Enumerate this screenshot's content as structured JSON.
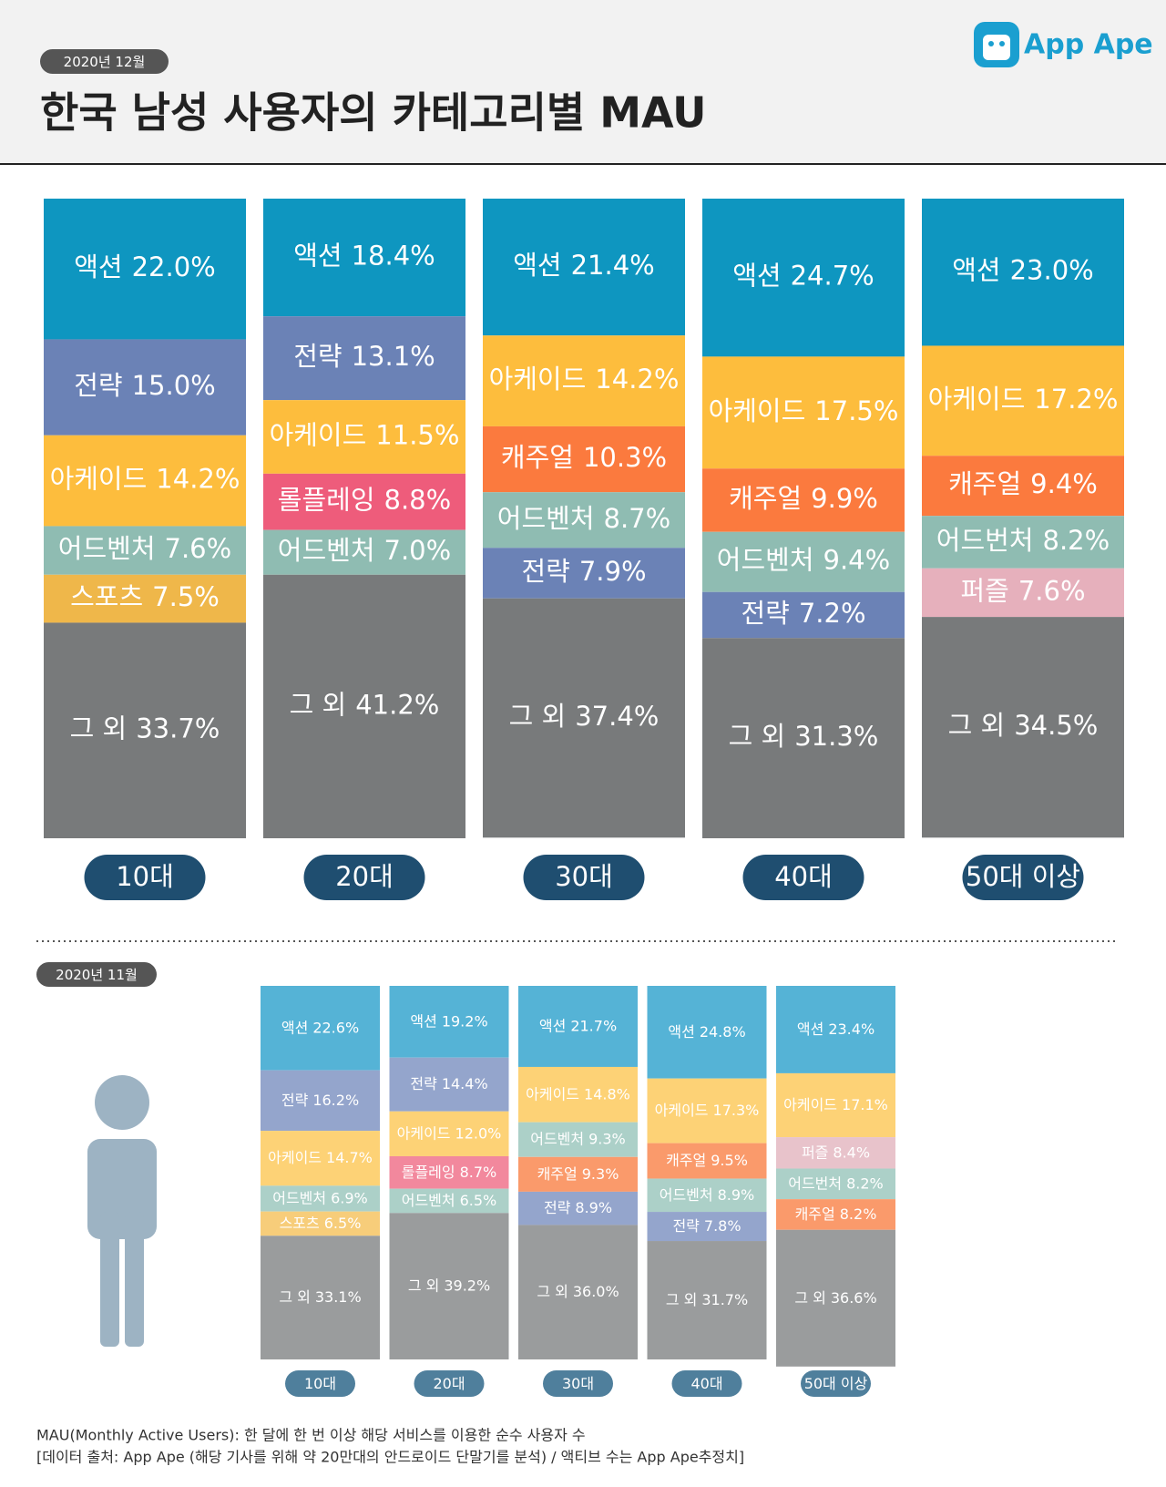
{
  "logo": "App Ape",
  "title": "한국 남성 사용자의 카테고리별 MAU",
  "notes": [
    "MAU(Monthly Active Users):  한 달에 한 번 이상 해당 서비스를 이용한 순수 사용자 수",
    "[데이터 출처: App Ape (해당 기사를 위해 약 20만대의 안드로이드 단말기를 분석) / 액티브 수는 App Ape추정치]"
  ],
  "chart_data": [
    {
      "type": "stacked_bar",
      "date": "2020년 12월",
      "ylim": [
        0,
        100
      ],
      "categories": [
        "10대",
        "20대",
        "30대",
        "40대",
        "50대 이상"
      ],
      "colors": {
        "액션": "#0e96c0",
        "전략": "#6b82b6",
        "아케이드": "#fdbd3d",
        "어드벤처": "#8fbcb2",
        "어드번처": "#8fbcb2",
        "스포츠": "#efb74a",
        "롤플레잉": "#ee5c7b",
        "캐주얼": "#fb7a3e",
        "퍼즐": "#e6b0bc",
        "그 외": "#787a7b"
      },
      "stacks": [
        {
          "names": [
            "액션",
            "전략",
            "아케이드",
            "어드벤처",
            "스포츠",
            "그 외"
          ],
          "values": [
            22.0,
            15.0,
            14.2,
            7.6,
            7.5,
            33.7
          ],
          "value_labels": [
            "22.0%",
            "15.0%",
            "14.2%",
            "7.6%",
            "7.5%",
            "33.7%"
          ]
        },
        {
          "names": [
            "액션",
            "전략",
            "아케이드",
            "롤플레잉",
            "어드벤처",
            "그 외"
          ],
          "values": [
            18.4,
            13.1,
            11.5,
            8.8,
            7.0,
            41.2
          ],
          "value_labels": [
            "18.4%",
            "13.1%",
            "11.5%",
            "8.8%",
            "7.0%",
            "41.2%"
          ]
        },
        {
          "names": [
            "액션",
            "아케이드",
            "캐주얼",
            "어드벤처",
            "전략",
            "그 외"
          ],
          "values": [
            21.4,
            14.2,
            10.3,
            8.7,
            7.9,
            37.4
          ],
          "value_labels": [
            "21.4%",
            "14.2%",
            "10.3%",
            "8.7%",
            "7.9%",
            "37.4%"
          ]
        },
        {
          "names": [
            "액션",
            "아케이드",
            "캐주얼",
            "어드벤처",
            "전략",
            "그 외"
          ],
          "values": [
            24.7,
            17.5,
            9.9,
            9.4,
            7.2,
            31.3
          ],
          "value_labels": [
            "24.7%",
            "17.5%",
            "9.9%",
            "9.4%",
            "7.2%",
            "31.3%"
          ]
        },
        {
          "names": [
            "액션",
            "아케이드",
            "캐주얼",
            "어드번처",
            "퍼즐",
            "그 외"
          ],
          "values": [
            23.0,
            17.2,
            9.4,
            8.2,
            7.6,
            34.5
          ],
          "value_labels": [
            "23.0%",
            "17.2%",
            "9.4%",
            "8.2%",
            "7.6%",
            "34.5%"
          ]
        }
      ]
    },
    {
      "type": "stacked_bar",
      "date": "2020년 11월",
      "ylim": [
        0,
        100
      ],
      "categories": [
        "10대",
        "20대",
        "30대",
        "40대",
        "50대 이상"
      ],
      "colors": {
        "액션": "#55b3d6",
        "전략": "#94a5cc",
        "아케이드": "#fdd276",
        "어드벤처": "#acd0c8",
        "어드번처": "#acd0c8",
        "스포츠": "#f7cd7a",
        "롤플레잉": "#f2889d",
        "캐주얼": "#fa9a6b",
        "퍼즐": "#e8c3cb",
        "그 외": "#9a9c9d"
      },
      "stacks": [
        {
          "names": [
            "액션",
            "전략",
            "아케이드",
            "어드벤처",
            "스포츠",
            "그 외"
          ],
          "values": [
            22.6,
            16.2,
            14.7,
            6.9,
            6.5,
            33.1
          ],
          "value_labels": [
            "22.6%",
            "16.2%",
            "14.7%",
            "6.9%",
            "6.5%",
            "33.1%"
          ]
        },
        {
          "names": [
            "액션",
            "전략",
            "아케이드",
            "롤플레잉",
            "어드벤처",
            "그 외"
          ],
          "values": [
            19.2,
            14.4,
            12.0,
            8.7,
            6.5,
            39.2
          ],
          "value_labels": [
            "19.2%",
            "14.4%",
            "12.0%",
            "8.7%",
            "6.5%",
            "39.2%"
          ]
        },
        {
          "names": [
            "액션",
            "아케이드",
            "어드벤처",
            "캐주얼",
            "전략",
            "그 외"
          ],
          "values": [
            21.7,
            14.8,
            9.3,
            9.3,
            8.9,
            36.0
          ],
          "value_labels": [
            "21.7%",
            "14.8%",
            "9.3%",
            "9.3%",
            "8.9%",
            "36.0%"
          ]
        },
        {
          "names": [
            "액션",
            "아케이드",
            "캐주얼",
            "어드벤처",
            "전략",
            "그 외"
          ],
          "values": [
            24.8,
            17.3,
            9.5,
            8.9,
            7.8,
            31.7
          ],
          "value_labels": [
            "24.8%",
            "17.3%",
            "9.5%",
            "8.9%",
            "7.8%",
            "31.7%"
          ]
        },
        {
          "names": [
            "액션",
            "아케이드",
            "퍼즐",
            "어드번처",
            "캐주얼",
            "그 외"
          ],
          "values": [
            23.4,
            17.1,
            8.4,
            8.2,
            8.2,
            36.6
          ],
          "value_labels": [
            "23.4%",
            "17.1%",
            "8.4%",
            "8.2%",
            "8.2%",
            "36.6%"
          ]
        }
      ]
    }
  ]
}
